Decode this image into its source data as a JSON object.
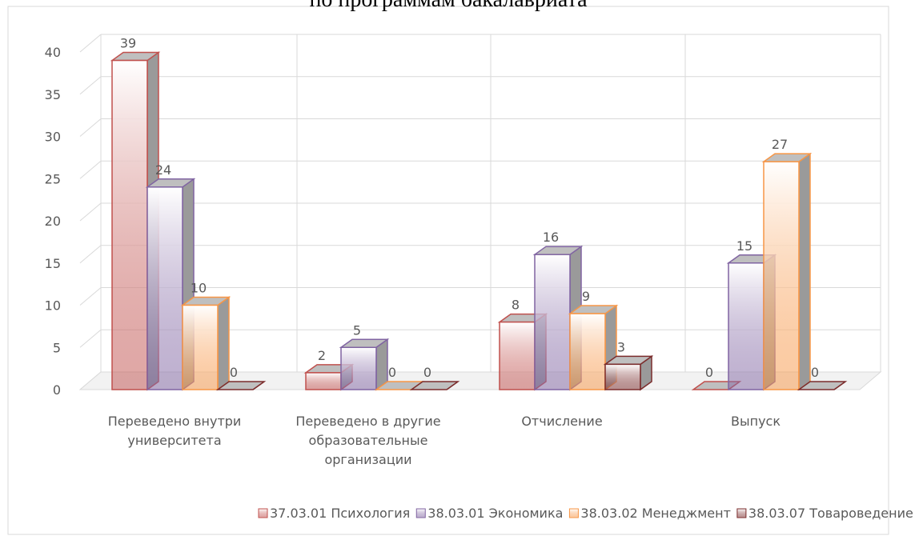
{
  "chart_data": {
    "type": "bar3d",
    "title": "по программам бакалавриата",
    "categories": [
      "Переведено внутри\nуниверситета",
      "Переведено в другие\nобразовательные\nорганизации",
      "Отчисление",
      "Выпуск"
    ],
    "series": [
      {
        "name": "37.03.01 Психология",
        "color": "#c0504d",
        "values": [
          39,
          2,
          8,
          0
        ]
      },
      {
        "name": "38.03.01 Экономика",
        "color": "#8064a2",
        "values": [
          24,
          5,
          16,
          15
        ]
      },
      {
        "name": "38.03.02 Менеджмент",
        "color": "#f79646",
        "values": [
          10,
          0,
          9,
          27
        ]
      },
      {
        "name": "38.03.07 Товароведение",
        "color": "#7b2c2c",
        "values": [
          0,
          0,
          3,
          0
        ]
      }
    ],
    "ylim": [
      0,
      40
    ],
    "yticks": [
      0,
      5,
      10,
      15,
      20,
      25,
      30,
      35,
      40
    ],
    "grid": true,
    "legend": "bottom"
  }
}
